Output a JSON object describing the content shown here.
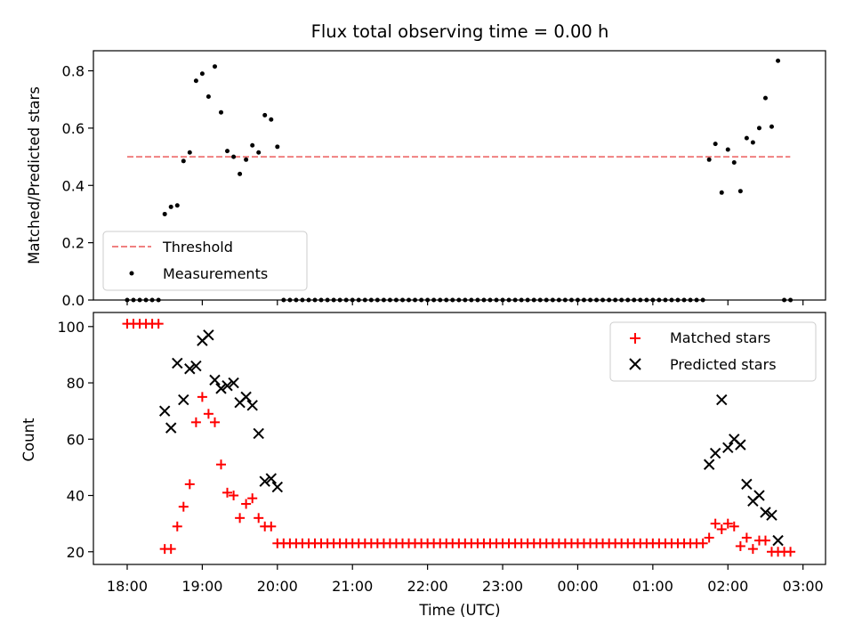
{
  "chart_data": [
    {
      "type": "scatter",
      "title": "Flux total observing time = 0.00 h",
      "xlabel": "",
      "ylabel": "Matched/Predicted stars",
      "ylim": [
        0,
        0.87
      ],
      "yticks": [
        0.0,
        0.2,
        0.4,
        0.6,
        0.8
      ],
      "ytick_labels": [
        "0.0",
        "0.2",
        "0.4",
        "0.6",
        "0.8"
      ],
      "legend": {
        "position": "lower-left",
        "entries": [
          "Threshold",
          "Measurements"
        ]
      },
      "threshold": {
        "name": "Threshold",
        "value": 0.5,
        "x_start": 18.0,
        "x_end": 26.83,
        "color": "#f08080",
        "style": "dashed"
      },
      "series": [
        {
          "name": "Measurements",
          "color": "#000000",
          "marker": "dot",
          "points": [
            [
              18.0,
              0.0
            ],
            [
              18.083,
              0.0
            ],
            [
              18.167,
              0.0
            ],
            [
              18.25,
              0.0
            ],
            [
              18.333,
              0.0
            ],
            [
              18.417,
              0.0
            ],
            [
              18.5,
              0.3
            ],
            [
              18.583,
              0.325
            ],
            [
              18.667,
              0.33
            ],
            [
              18.75,
              0.485
            ],
            [
              18.833,
              0.515
            ],
            [
              18.917,
              0.765
            ],
            [
              19.0,
              0.79
            ],
            [
              19.083,
              0.71
            ],
            [
              19.167,
              0.815
            ],
            [
              19.25,
              0.655
            ],
            [
              19.333,
              0.52
            ],
            [
              19.417,
              0.5
            ],
            [
              19.5,
              0.44
            ],
            [
              19.583,
              0.49
            ],
            [
              19.667,
              0.54
            ],
            [
              19.75,
              0.515
            ],
            [
              19.833,
              0.645
            ],
            [
              19.917,
              0.63
            ],
            [
              20.0,
              0.535
            ],
            [
              20.083,
              0.0
            ],
            [
              20.167,
              0.0
            ],
            [
              20.25,
              0.0
            ],
            [
              20.333,
              0.0
            ],
            [
              20.417,
              0.0
            ],
            [
              20.5,
              0.0
            ],
            [
              20.583,
              0.0
            ],
            [
              20.667,
              0.0
            ],
            [
              20.75,
              0.0
            ],
            [
              20.833,
              0.0
            ],
            [
              20.917,
              0.0
            ],
            [
              21.0,
              0.0
            ],
            [
              21.083,
              0.0
            ],
            [
              21.167,
              0.0
            ],
            [
              21.25,
              0.0
            ],
            [
              21.333,
              0.0
            ],
            [
              21.417,
              0.0
            ],
            [
              21.5,
              0.0
            ],
            [
              21.583,
              0.0
            ],
            [
              21.667,
              0.0
            ],
            [
              21.75,
              0.0
            ],
            [
              21.833,
              0.0
            ],
            [
              21.917,
              0.0
            ],
            [
              22.0,
              0.0
            ],
            [
              22.083,
              0.0
            ],
            [
              22.167,
              0.0
            ],
            [
              22.25,
              0.0
            ],
            [
              22.333,
              0.0
            ],
            [
              22.417,
              0.0
            ],
            [
              22.5,
              0.0
            ],
            [
              22.583,
              0.0
            ],
            [
              22.667,
              0.0
            ],
            [
              22.75,
              0.0
            ],
            [
              22.833,
              0.0
            ],
            [
              22.917,
              0.0
            ],
            [
              23.0,
              0.0
            ],
            [
              23.083,
              0.0
            ],
            [
              23.167,
              0.0
            ],
            [
              23.25,
              0.0
            ],
            [
              23.333,
              0.0
            ],
            [
              23.417,
              0.0
            ],
            [
              23.5,
              0.0
            ],
            [
              23.583,
              0.0
            ],
            [
              23.667,
              0.0
            ],
            [
              23.75,
              0.0
            ],
            [
              23.833,
              0.0
            ],
            [
              23.917,
              0.0
            ],
            [
              24.0,
              0.0
            ],
            [
              24.083,
              0.0
            ],
            [
              24.167,
              0.0
            ],
            [
              24.25,
              0.0
            ],
            [
              24.333,
              0.0
            ],
            [
              24.417,
              0.0
            ],
            [
              24.5,
              0.0
            ],
            [
              24.583,
              0.0
            ],
            [
              24.667,
              0.0
            ],
            [
              24.75,
              0.0
            ],
            [
              24.833,
              0.0
            ],
            [
              24.917,
              0.0
            ],
            [
              25.0,
              0.0
            ],
            [
              25.083,
              0.0
            ],
            [
              25.167,
              0.0
            ],
            [
              25.25,
              0.0
            ],
            [
              25.333,
              0.0
            ],
            [
              25.417,
              0.0
            ],
            [
              25.5,
              0.0
            ],
            [
              25.583,
              0.0
            ],
            [
              25.667,
              0.0
            ],
            [
              25.75,
              0.49
            ],
            [
              25.833,
              0.545
            ],
            [
              25.917,
              0.375
            ],
            [
              26.0,
              0.525
            ],
            [
              26.083,
              0.48
            ],
            [
              26.167,
              0.38
            ],
            [
              26.25,
              0.565
            ],
            [
              26.333,
              0.55
            ],
            [
              26.417,
              0.6
            ],
            [
              26.5,
              0.705
            ],
            [
              26.583,
              0.605
            ],
            [
              26.667,
              0.835
            ],
            [
              26.75,
              0.0
            ],
            [
              26.833,
              0.0
            ]
          ]
        }
      ]
    },
    {
      "type": "scatter",
      "title": "",
      "xlabel": "Time (UTC)",
      "ylabel": "Count",
      "ylim": [
        15.5,
        105
      ],
      "yticks": [
        20,
        40,
        60,
        80,
        100
      ],
      "ytick_labels": [
        "20",
        "40",
        "60",
        "80",
        "100"
      ],
      "xlim": [
        17.55,
        27.3
      ],
      "xticks": [
        18,
        19,
        20,
        21,
        22,
        23,
        24,
        25,
        26,
        27
      ],
      "xtick_labels": [
        "18:00",
        "19:00",
        "20:00",
        "21:00",
        "22:00",
        "23:00",
        "00:00",
        "01:00",
        "02:00",
        "03:00"
      ],
      "legend": {
        "position": "top-right",
        "entries": [
          "Matched stars",
          "Predicted stars"
        ]
      },
      "series": [
        {
          "name": "Matched stars",
          "color": "#ff0000",
          "marker": "plus",
          "points": [
            [
              18.0,
              101
            ],
            [
              18.083,
              101
            ],
            [
              18.167,
              101
            ],
            [
              18.25,
              101
            ],
            [
              18.333,
              101
            ],
            [
              18.417,
              101
            ],
            [
              18.5,
              21
            ],
            [
              18.583,
              21
            ],
            [
              18.667,
              29
            ],
            [
              18.75,
              36
            ],
            [
              18.833,
              44
            ],
            [
              18.917,
              66
            ],
            [
              19.0,
              75
            ],
            [
              19.083,
              69
            ],
            [
              19.167,
              66
            ],
            [
              19.25,
              51
            ],
            [
              19.333,
              41
            ],
            [
              19.417,
              40
            ],
            [
              19.5,
              32
            ],
            [
              19.583,
              37
            ],
            [
              19.667,
              39
            ],
            [
              19.75,
              32
            ],
            [
              19.833,
              29
            ],
            [
              19.917,
              29
            ],
            [
              20.0,
              23
            ],
            [
              20.083,
              23
            ],
            [
              20.167,
              23
            ],
            [
              20.25,
              23
            ],
            [
              20.333,
              23
            ],
            [
              20.417,
              23
            ],
            [
              20.5,
              23
            ],
            [
              20.583,
              23
            ],
            [
              20.667,
              23
            ],
            [
              20.75,
              23
            ],
            [
              20.833,
              23
            ],
            [
              20.917,
              23
            ],
            [
              21.0,
              23
            ],
            [
              21.083,
              23
            ],
            [
              21.167,
              23
            ],
            [
              21.25,
              23
            ],
            [
              21.333,
              23
            ],
            [
              21.417,
              23
            ],
            [
              21.5,
              23
            ],
            [
              21.583,
              23
            ],
            [
              21.667,
              23
            ],
            [
              21.75,
              23
            ],
            [
              21.833,
              23
            ],
            [
              21.917,
              23
            ],
            [
              22.0,
              23
            ],
            [
              22.083,
              23
            ],
            [
              22.167,
              23
            ],
            [
              22.25,
              23
            ],
            [
              22.333,
              23
            ],
            [
              22.417,
              23
            ],
            [
              22.5,
              23
            ],
            [
              22.583,
              23
            ],
            [
              22.667,
              23
            ],
            [
              22.75,
              23
            ],
            [
              22.833,
              23
            ],
            [
              22.917,
              23
            ],
            [
              23.0,
              23
            ],
            [
              23.083,
              23
            ],
            [
              23.167,
              23
            ],
            [
              23.25,
              23
            ],
            [
              23.333,
              23
            ],
            [
              23.417,
              23
            ],
            [
              23.5,
              23
            ],
            [
              23.583,
              23
            ],
            [
              23.667,
              23
            ],
            [
              23.75,
              23
            ],
            [
              23.833,
              23
            ],
            [
              23.917,
              23
            ],
            [
              24.0,
              23
            ],
            [
              24.083,
              23
            ],
            [
              24.167,
              23
            ],
            [
              24.25,
              23
            ],
            [
              24.333,
              23
            ],
            [
              24.417,
              23
            ],
            [
              24.5,
              23
            ],
            [
              24.583,
              23
            ],
            [
              24.667,
              23
            ],
            [
              24.75,
              23
            ],
            [
              24.833,
              23
            ],
            [
              24.917,
              23
            ],
            [
              25.0,
              23
            ],
            [
              25.083,
              23
            ],
            [
              25.167,
              23
            ],
            [
              25.25,
              23
            ],
            [
              25.333,
              23
            ],
            [
              25.417,
              23
            ],
            [
              25.5,
              23
            ],
            [
              25.583,
              23
            ],
            [
              25.667,
              23
            ],
            [
              25.75,
              25
            ],
            [
              25.833,
              30
            ],
            [
              25.917,
              28
            ],
            [
              26.0,
              30
            ],
            [
              26.083,
              29
            ],
            [
              26.167,
              22
            ],
            [
              26.25,
              25
            ],
            [
              26.333,
              21
            ],
            [
              26.417,
              24
            ],
            [
              26.5,
              24
            ],
            [
              26.583,
              20
            ],
            [
              26.667,
              20
            ],
            [
              26.75,
              20
            ],
            [
              26.833,
              20
            ]
          ]
        },
        {
          "name": "Predicted stars",
          "color": "#000000",
          "marker": "x",
          "points": [
            [
              18.5,
              70
            ],
            [
              18.583,
              64
            ],
            [
              18.667,
              87
            ],
            [
              18.75,
              74
            ],
            [
              18.833,
              85
            ],
            [
              18.917,
              86
            ],
            [
              19.0,
              95
            ],
            [
              19.083,
              97
            ],
            [
              19.167,
              81
            ],
            [
              19.25,
              78
            ],
            [
              19.333,
              79
            ],
            [
              19.417,
              80
            ],
            [
              19.5,
              73
            ],
            [
              19.583,
              75
            ],
            [
              19.667,
              72
            ],
            [
              19.75,
              62
            ],
            [
              19.833,
              45
            ],
            [
              19.917,
              46
            ],
            [
              20.0,
              43
            ],
            [
              25.75,
              51
            ],
            [
              25.833,
              55
            ],
            [
              25.917,
              74
            ],
            [
              26.0,
              57
            ],
            [
              26.083,
              60
            ],
            [
              26.167,
              58
            ],
            [
              26.25,
              44
            ],
            [
              26.333,
              38
            ],
            [
              26.417,
              40
            ],
            [
              26.5,
              34
            ],
            [
              26.583,
              33
            ],
            [
              26.667,
              24
            ]
          ]
        }
      ]
    }
  ]
}
